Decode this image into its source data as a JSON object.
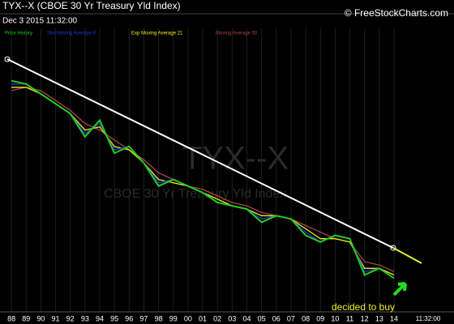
{
  "chart_data": {
    "type": "line",
    "title": "TYX--X (CBOE 30 Yr Treasury Yld Index)",
    "subtitle": "Dec 3 2015 11:32:00",
    "source": "© FreeStockCharts.com",
    "watermark": "TYX--X",
    "watermark_subtitle": "CBOE 30 Yr Treasury Yld Index",
    "annotation": "decided to buy",
    "time_label": "11:32:00",
    "categories": [
      "88",
      "89",
      "90",
      "91",
      "92",
      "93",
      "94",
      "95",
      "96",
      "97",
      "98",
      "99",
      "00",
      "01",
      "02",
      "03",
      "04",
      "05",
      "06",
      "07",
      "08",
      "09",
      "10",
      "11",
      "12",
      "13",
      "14"
    ],
    "ylim": [
      2,
      10
    ],
    "series": [
      {
        "name": "Price History",
        "color": "#22cc22",
        "values": [
          8.9,
          8.8,
          8.5,
          8.2,
          7.9,
          7.2,
          7.7,
          6.7,
          6.9,
          6.4,
          5.7,
          5.9,
          5.7,
          5.5,
          5.2,
          5.1,
          5.0,
          4.6,
          4.8,
          4.7,
          4.2,
          4.0,
          4.2,
          4.1,
          3.0,
          3.2,
          2.9
        ]
      },
      {
        "name": "Sim Moving Average 8",
        "color": "#2233dd",
        "values": [
          8.8,
          8.8,
          8.5,
          8.2,
          7.9,
          7.3,
          7.6,
          6.8,
          6.9,
          6.4,
          5.8,
          5.9,
          5.7,
          5.5,
          5.2,
          5.1,
          5.0,
          4.7,
          4.8,
          4.7,
          4.3,
          4.0,
          4.2,
          4.1,
          3.1,
          3.2,
          2.9
        ]
      },
      {
        "name": "Exp Moving Average 21",
        "color": "#eeee22",
        "values": [
          8.7,
          8.7,
          8.5,
          8.2,
          7.9,
          7.4,
          7.5,
          6.9,
          6.8,
          6.4,
          5.9,
          5.8,
          5.7,
          5.5,
          5.3,
          5.1,
          5.0,
          4.8,
          4.8,
          4.7,
          4.4,
          4.1,
          4.1,
          4.0,
          3.2,
          3.2,
          3.0
        ]
      },
      {
        "name": "Moving Average 50",
        "color": "#aa4444",
        "values": [
          8.6,
          8.7,
          8.6,
          8.3,
          8.0,
          7.6,
          7.4,
          7.1,
          6.8,
          6.5,
          6.1,
          5.9,
          5.7,
          5.6,
          5.4,
          5.2,
          5.1,
          4.9,
          4.8,
          4.7,
          4.5,
          4.3,
          4.1,
          4.0,
          3.4,
          3.3,
          3.1
        ]
      }
    ]
  }
}
